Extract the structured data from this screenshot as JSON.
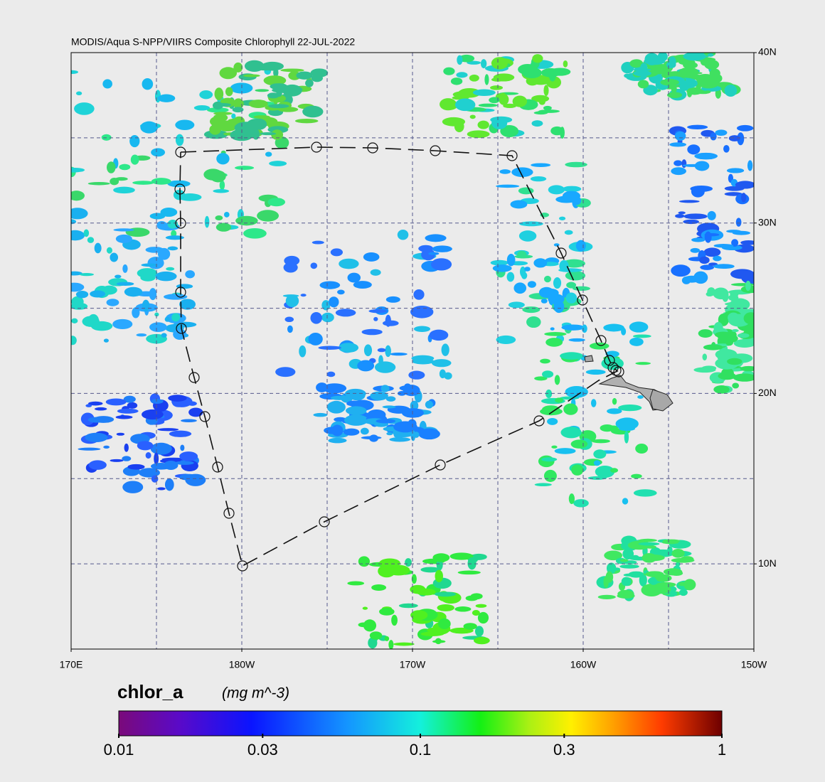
{
  "chart_data": {
    "type": "map",
    "title": "MODIS/Aqua S-NPP/VIIRS Composite Chlorophyll 22-JUL-2022",
    "xlim": [
      170,
      210
    ],
    "ylim": [
      5,
      40
    ],
    "xticks": [
      {
        "value": 170,
        "label": "170E"
      },
      {
        "value": 180,
        "label": "180W"
      },
      {
        "value": 190,
        "label": "170W"
      },
      {
        "value": 200,
        "label": "160W"
      },
      {
        "value": 210,
        "label": "150W"
      }
    ],
    "yticks": [
      {
        "value": 40,
        "label": "40N"
      },
      {
        "value": 30,
        "label": "30N"
      },
      {
        "value": 20,
        "label": "20N"
      },
      {
        "value": 10,
        "label": "10N"
      }
    ],
    "xgrid": [
      175,
      180,
      185,
      190,
      195,
      200,
      205
    ],
    "ygrid": [
      35,
      30,
      25,
      20,
      15,
      10
    ],
    "grid": true,
    "colorbar": {
      "label": "chlor_a",
      "units": "(mg m^-3)",
      "lim": [
        0.01,
        1
      ],
      "log_scale": true,
      "ticks": [
        0.01,
        0.03,
        0.1,
        0.3,
        1
      ]
    }
  }
}
